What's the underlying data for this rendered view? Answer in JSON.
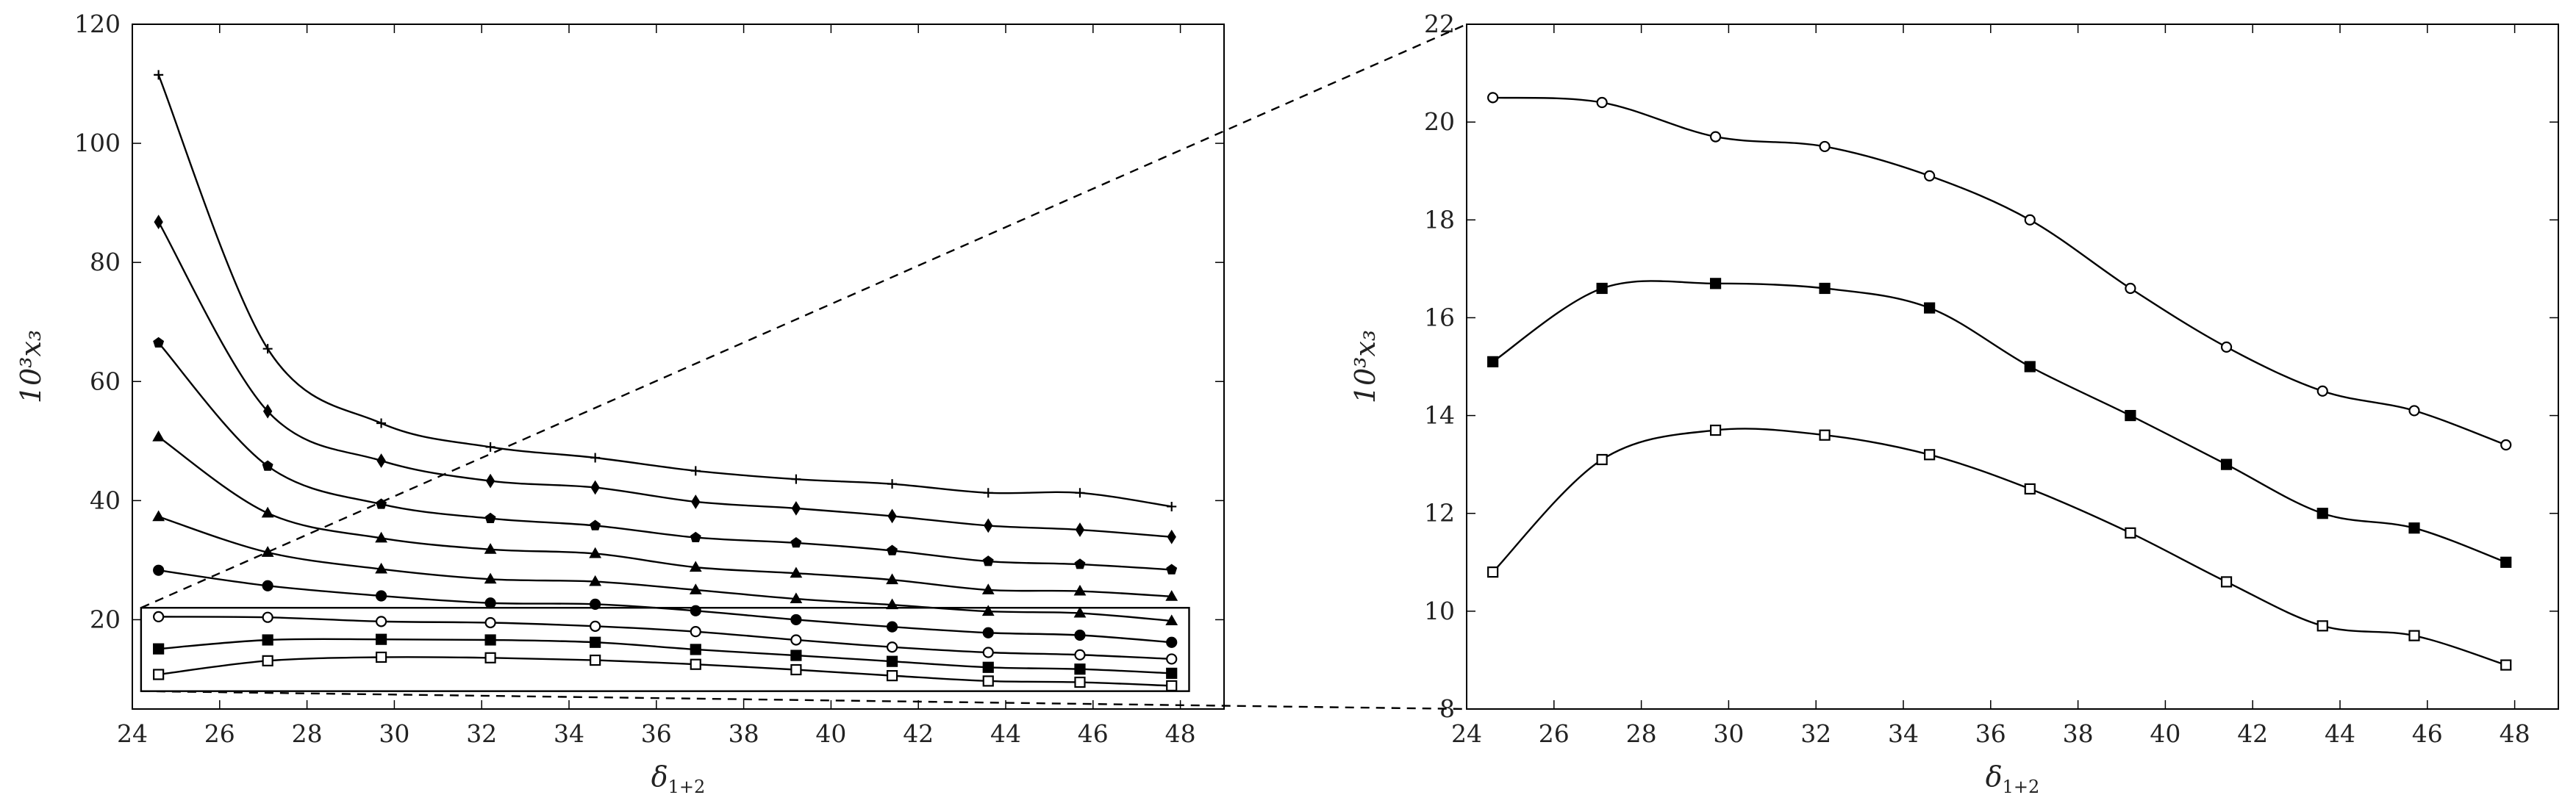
{
  "chart_data": [
    {
      "type": "line",
      "panel": "left",
      "xlabel": "δ1+2",
      "ylabel": "10³x₃",
      "xlim": [
        24,
        49
      ],
      "ylim": [
        5,
        120
      ],
      "xticks": [
        24,
        26,
        28,
        30,
        32,
        34,
        36,
        38,
        40,
        42,
        44,
        46,
        48
      ],
      "yticks": [
        20,
        40,
        60,
        80,
        100,
        120
      ],
      "grid": false,
      "x": [
        24.6,
        27.1,
        29.7,
        32.2,
        34.6,
        36.9,
        39.2,
        41.4,
        43.6,
        45.7,
        47.8
      ],
      "series": [
        {
          "marker": "plus",
          "values": [
            111.5,
            65.5,
            53.0,
            49.0,
            47.2,
            45.0,
            43.6,
            42.8,
            41.3,
            41.3,
            39.0
          ]
        },
        {
          "marker": "diamond",
          "values": [
            86.8,
            55.0,
            46.7,
            43.3,
            42.2,
            39.8,
            38.7,
            37.4,
            35.8,
            35.1,
            33.9
          ]
        },
        {
          "marker": "pentagon",
          "values": [
            66.5,
            45.8,
            39.4,
            37.0,
            35.8,
            33.8,
            32.9,
            31.6,
            29.8,
            29.3,
            28.4
          ]
        },
        {
          "marker": "triangle",
          "values": [
            50.7,
            37.9,
            33.7,
            31.8,
            31.1,
            28.8,
            27.8,
            26.7,
            25.0,
            24.8,
            23.9
          ]
        },
        {
          "marker": "triangle-filled",
          "values": [
            37.3,
            31.3,
            28.5,
            26.8,
            26.4,
            25.0,
            23.5,
            22.5,
            21.4,
            21.1,
            19.8
          ]
        },
        {
          "marker": "circle-filled",
          "values": [
            28.3,
            25.7,
            24.0,
            22.8,
            22.6,
            21.5,
            20.0,
            18.8,
            17.8,
            17.4,
            16.2
          ]
        },
        {
          "marker": "circle",
          "values": [
            20.5,
            20.4,
            19.7,
            19.5,
            18.9,
            18.0,
            16.6,
            15.4,
            14.5,
            14.1,
            13.4
          ]
        },
        {
          "marker": "square-filled",
          "values": [
            15.1,
            16.6,
            16.7,
            16.6,
            16.2,
            15.0,
            14.0,
            13.0,
            12.0,
            11.7,
            11.0
          ]
        },
        {
          "marker": "square",
          "values": [
            10.8,
            13.1,
            13.7,
            13.6,
            13.2,
            12.5,
            11.6,
            10.6,
            9.7,
            9.5,
            8.9
          ]
        }
      ],
      "zoom_box": {
        "x": [
          24.2,
          48.2
        ],
        "y": [
          8,
          22
        ]
      }
    },
    {
      "type": "line",
      "panel": "right",
      "xlabel": "δ1+2",
      "ylabel": "10³x₃",
      "xlim": [
        24,
        49
      ],
      "ylim": [
        8,
        22
      ],
      "xticks": [
        24,
        26,
        28,
        30,
        32,
        34,
        36,
        38,
        40,
        42,
        44,
        46,
        48
      ],
      "yticks": [
        8,
        10,
        12,
        14,
        16,
        18,
        20,
        22
      ],
      "grid": false,
      "x": [
        24.6,
        27.1,
        29.7,
        32.2,
        34.6,
        36.9,
        39.2,
        41.4,
        43.6,
        45.7,
        47.8
      ],
      "series": [
        {
          "marker": "circle",
          "values": [
            20.5,
            20.4,
            19.7,
            19.5,
            18.9,
            18.0,
            16.6,
            15.4,
            14.5,
            14.1,
            13.4
          ]
        },
        {
          "marker": "square-filled",
          "values": [
            15.1,
            16.6,
            16.7,
            16.6,
            16.2,
            15.0,
            14.0,
            13.0,
            12.0,
            11.7,
            11.0
          ]
        },
        {
          "marker": "square",
          "values": [
            10.8,
            13.1,
            13.7,
            13.6,
            13.2,
            12.5,
            11.6,
            10.6,
            9.7,
            9.5,
            8.9
          ]
        }
      ]
    }
  ]
}
